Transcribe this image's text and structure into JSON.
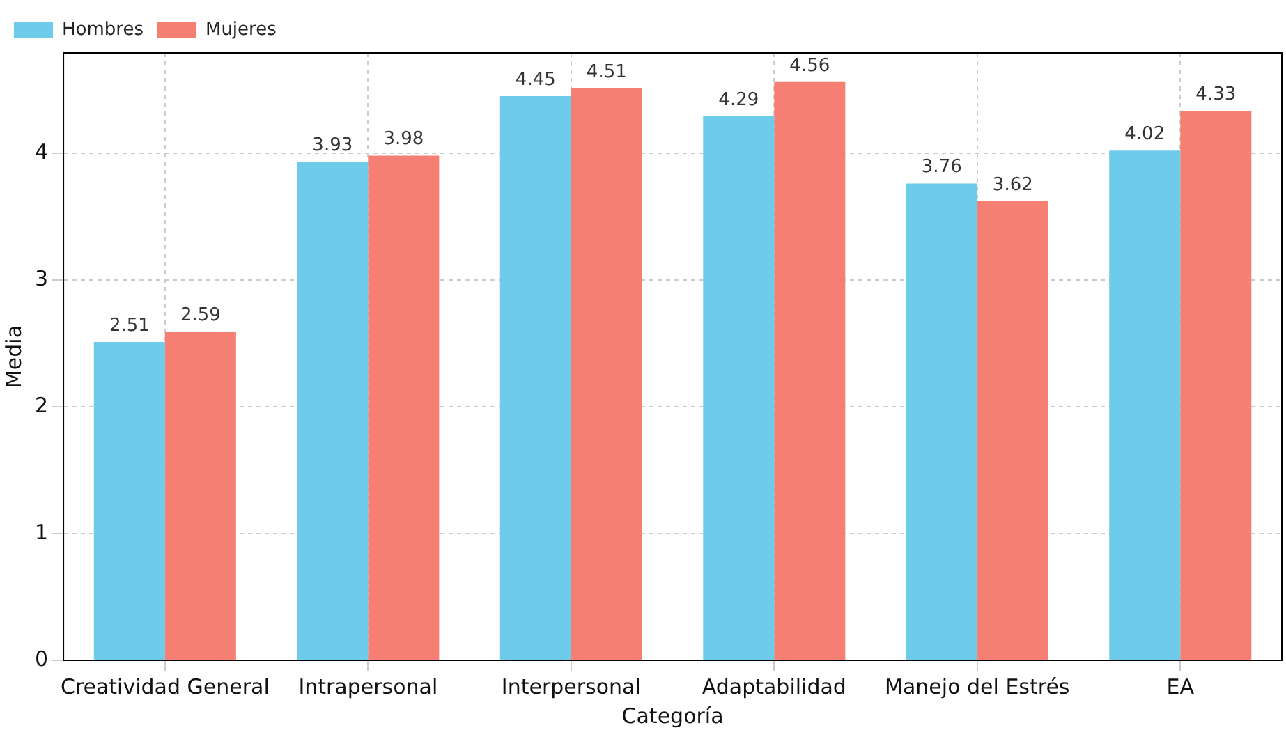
{
  "chart_data": {
    "type": "bar",
    "xlabel": "Categoría",
    "ylabel": "Media",
    "categories": [
      "Creatividad General",
      "Intrapersonal",
      "Interpersonal",
      "Adaptabilidad",
      "Manejo del Estrés",
      "EA"
    ],
    "series": [
      {
        "name": "Hombres",
        "color": "#6fcbea",
        "values": [
          2.51,
          3.93,
          4.45,
          4.29,
          3.76,
          4.02
        ]
      },
      {
        "name": "Mujeres",
        "color": "#f47f72",
        "values": [
          2.59,
          3.98,
          4.51,
          4.56,
          3.62,
          4.33
        ]
      }
    ],
    "ylim": [
      0,
      4.79
    ],
    "yticks": [
      0,
      1,
      2,
      3,
      4
    ],
    "grid": true,
    "line_style": "dashed",
    "legend": "top left",
    "data_labels": true
  }
}
